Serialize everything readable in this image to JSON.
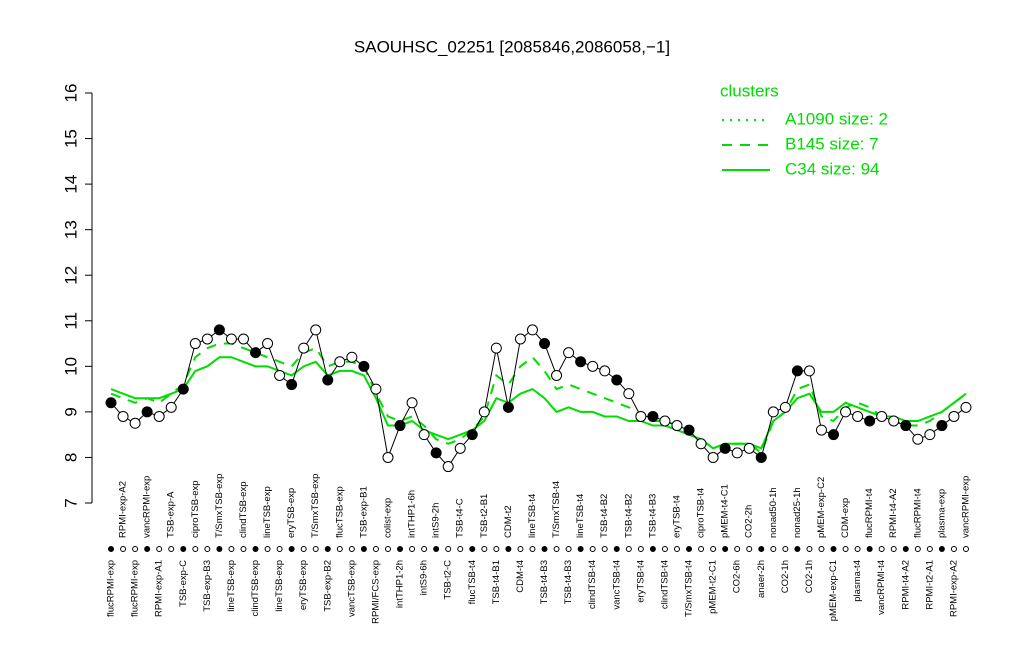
{
  "chart_data": {
    "type": "line",
    "title": "SAOUHSC_02251 [2085846,2086058,−1]",
    "categories": [
      "flucRPMI-exp",
      "RPMI-exp-A2",
      "flucRPMI-exp",
      "vancRPMI-exp",
      "RPMI-exp-A1",
      "TSB-exp-A",
      "TSB-exp-C",
      "ciproTSB-exp",
      "TSB-exp-B3",
      "T/SmxTSB-exp",
      "lineTSB-exp",
      "clindTSB-exp",
      "clindTSB-exp",
      "lineTSB-exp",
      "lineTSB-exp",
      "eryTSB-exp",
      "eryTSB-exp",
      "T/SmxTSB-exp",
      "TSB-exp-B2",
      "flucTSB-exp",
      "vancTSB-exp",
      "TSB-exp-B1",
      "RPMI/FCS-exp",
      "colist-exp",
      "intTHP1-2h",
      "intTHP1-6h",
      "intS9-6h",
      "intS9-2h",
      "TSB-t2-C",
      "TSB-t4-C",
      "flucTSB-t4",
      "TSB-t2-B1",
      "TSB-t4-B1",
      "CDM-t2",
      "CDM-t4",
      "lineTSB-t4",
      "TSB-t4-B3",
      "T/SmxTSB-t4",
      "TSB-t4-B3",
      "lineTSB-t4",
      "clindTSB-t4",
      "TSB-t4-B2",
      "vancTSB-t4",
      "TSB-t4-B2",
      "eryTSB-t4",
      "TSB-t4-B3",
      "clindTSB-t4",
      "eryTSB-t4",
      "T/SmxTSB-t4",
      "ciproTSB-t4",
      "pMEM-t2-C1",
      "pMEM-t4-C1",
      "CO2-6h",
      "CO2-2h",
      "anaer-2h",
      "nonad50-1h",
      "CO2-1h",
      "nonad25-1h",
      "CO2-1h",
      "pMEM-exp-C2",
      "pMEM-exp-C1",
      "CDM-exp",
      "plasma-t4",
      "flucRPMI-t4",
      "vancRPMI-t4",
      "RPMI-t4-A2",
      "RPMI-t4-A2",
      "flucRPMI-t4",
      "RPMI-t2-A1",
      "plasma-exp",
      "RPMI-exp-A2",
      "vancRPMI-exp"
    ],
    "values": [
      9.2,
      8.9,
      8.75,
      9.0,
      8.9,
      9.1,
      9.5,
      10.5,
      10.6,
      10.8,
      10.6,
      10.6,
      10.3,
      10.5,
      9.8,
      9.6,
      10.4,
      10.8,
      9.7,
      10.1,
      10.2,
      10.0,
      9.5,
      8.0,
      8.7,
      9.2,
      8.5,
      8.1,
      7.8,
      8.2,
      8.5,
      9.0,
      10.4,
      9.1,
      10.6,
      10.8,
      10.5,
      9.8,
      10.3,
      10.1,
      10.0,
      9.9,
      9.7,
      9.4,
      8.9,
      8.9,
      8.8,
      8.7,
      8.6,
      8.3,
      8.0,
      8.2,
      8.1,
      8.2,
      8.0,
      9.0,
      9.1,
      9.9,
      9.9,
      8.6,
      8.5,
      9.0,
      8.9,
      8.8,
      8.9,
      8.8,
      8.7,
      8.4,
      8.5,
      8.7,
      8.9,
      9.1
    ],
    "color": "#000000",
    "ylim": [
      7,
      16
    ],
    "yticks": [
      7,
      8,
      9,
      10,
      11,
      12,
      13,
      14,
      15,
      16
    ],
    "legend": {
      "title": "clusters",
      "color": "#00dd00",
      "position": "top-right",
      "items": [
        {
          "name": "A1090 size: 2",
          "dash": "2,6"
        },
        {
          "name": "B145 size: 7",
          "dash": "10,8",
          "values": [
            9.4,
            9.3,
            9.2,
            9.3,
            9.2,
            9.4,
            9.6,
            10.2,
            10.4,
            10.5,
            10.5,
            10.4,
            10.3,
            10.2,
            10.1,
            10.0,
            10.3,
            10.4,
            10.0,
            10.1,
            10.1,
            10.0,
            9.4,
            8.9,
            8.8,
            8.9,
            8.7,
            8.4,
            8.3,
            8.4,
            8.6,
            8.9,
            9.8,
            9.6,
            10.0,
            10.2,
            9.9,
            9.5,
            9.6,
            9.5,
            9.4,
            9.3,
            9.2,
            9.1,
            8.9,
            8.8,
            8.8,
            8.7,
            8.5,
            8.4,
            8.2,
            8.3,
            8.3,
            8.3,
            8.1,
            8.8,
            9.0,
            9.5,
            9.6,
            8.9,
            8.8,
            9.1,
            9.2,
            9.1,
            8.9,
            8.8,
            8.7,
            8.7,
            8.8,
            9.0,
            9.2,
            9.4
          ]
        },
        {
          "name": "C34 size: 94",
          "dash": "none",
          "values": [
            9.5,
            9.4,
            9.3,
            9.3,
            9.3,
            9.4,
            9.5,
            9.9,
            10.0,
            10.2,
            10.2,
            10.1,
            10.0,
            10.0,
            9.9,
            9.8,
            10.0,
            10.1,
            9.8,
            9.9,
            9.9,
            9.8,
            9.3,
            8.7,
            8.7,
            8.8,
            8.6,
            8.5,
            8.4,
            8.5,
            8.6,
            8.8,
            9.3,
            9.2,
            9.4,
            9.5,
            9.3,
            9.0,
            9.1,
            9.0,
            9.0,
            8.9,
            8.9,
            8.8,
            8.8,
            8.7,
            8.7,
            8.6,
            8.5,
            8.4,
            8.2,
            8.3,
            8.3,
            8.3,
            8.2,
            8.8,
            9.0,
            9.3,
            9.4,
            9.0,
            9.0,
            9.2,
            9.1,
            9.0,
            8.9,
            8.9,
            8.8,
            8.8,
            8.9,
            9.0,
            9.2,
            9.4
          ]
        }
      ]
    }
  }
}
